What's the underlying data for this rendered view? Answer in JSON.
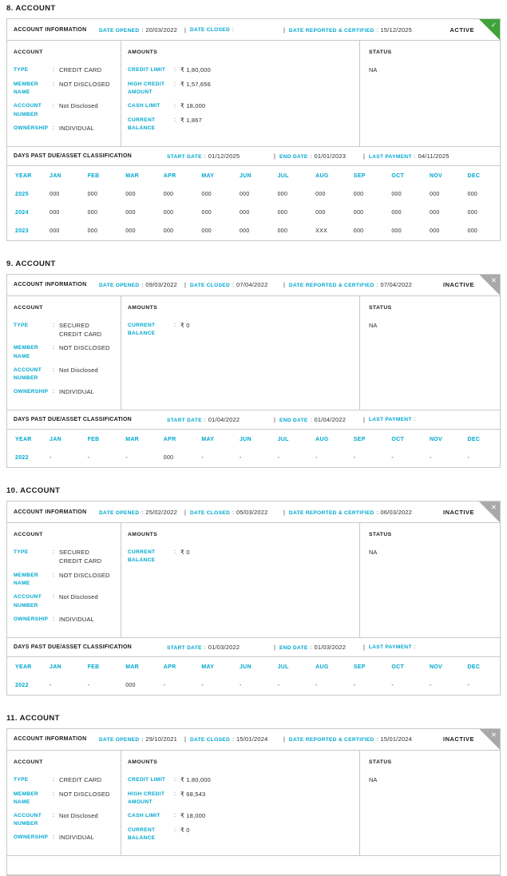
{
  "theme": {
    "accent_cyan": "#00A8CF",
    "active_green": "#3FA33A",
    "inactive_gray": "#A9A9A9",
    "border_gray": "#C9C9C9",
    "text_dark": "#1B1B1B",
    "text_value": "#2D2D2D"
  },
  "labels": {
    "account_information": "ACCOUNT INFORMATION",
    "date_opened": "DATE OPENED",
    "date_closed": "DATE CLOSED",
    "date_reported_certified": "DATE REPORTED & CERTIFIED",
    "account": "ACCOUNT",
    "amounts": "AMOUNTS",
    "status": "STATUS",
    "days_past_due": "DAYS PAST DUE/ASSET CLASSIFICATION",
    "start_date": "START DATE",
    "end_date": "END DATE",
    "last_payment": "LAST PAYMENT",
    "year": "YEAR",
    "months": [
      "JAN",
      "FEB",
      "MAR",
      "APR",
      "MAY",
      "JUN",
      "JUL",
      "AUG",
      "SEP",
      "OCT",
      "NOV",
      "DEC"
    ],
    "colon": ":",
    "pipe": "|"
  },
  "accounts": [
    {
      "title": "8. ACCOUNT",
      "state": "ACTIVE",
      "state_kind": "active",
      "state_icon_glyph": "✓",
      "date_opened": "20/03/2022",
      "date_closed": "",
      "date_reported_certified": "15/12/2025",
      "account_fields": [
        {
          "label": "TYPE",
          "value": "CREDIT CARD"
        },
        {
          "label": "MEMBER NAME",
          "value": "NOT DISCLOSED"
        },
        {
          "label": "ACCOUNT NUMBER",
          "value": "Not Disclosed"
        },
        {
          "label": "OWNERSHIP",
          "value": "INDIVIDUAL"
        }
      ],
      "amount_fields": [
        {
          "label": "CREDIT LIMIT",
          "value": "₹ 1,80,000"
        },
        {
          "label": "HIGH CREDIT AMOUNT",
          "value": "₹ 1,57,656"
        },
        {
          "label": "CASH LIMIT",
          "value": "₹ 18,000"
        },
        {
          "label": "CURRENT BALANCE",
          "value": "₹ 1,867"
        }
      ],
      "status_value": "NA",
      "dpd": {
        "start_date": "01/12/2025",
        "end_date": "01/01/2023",
        "last_payment": "04/11/2025",
        "rows": [
          {
            "year": "2025",
            "values": [
              "000",
              "000",
              "000",
              "000",
              "000",
              "000",
              "000",
              "000",
              "000",
              "000",
              "000",
              "000"
            ]
          },
          {
            "year": "2024",
            "values": [
              "000",
              "000",
              "000",
              "000",
              "000",
              "000",
              "000",
              "000",
              "000",
              "000",
              "000",
              "000"
            ]
          },
          {
            "year": "2023",
            "values": [
              "000",
              "000",
              "000",
              "000",
              "000",
              "000",
              "000",
              "XXX",
              "000",
              "000",
              "000",
              "000"
            ]
          }
        ]
      }
    },
    {
      "title": "9. ACCOUNT",
      "state": "INACTIVE",
      "state_kind": "inactive",
      "state_icon_glyph": "✕",
      "date_opened": "09/03/2022",
      "date_closed": "07/04/2022",
      "date_reported_certified": "07/04/2022",
      "account_fields": [
        {
          "label": "TYPE",
          "value": "SECURED CREDIT CARD"
        },
        {
          "label": "MEMBER NAME",
          "value": "NOT DISCLOSED"
        },
        {
          "label": "ACCOUNT NUMBER",
          "value": "Not Disclosed"
        },
        {
          "label": "OWNERSHIP",
          "value": "INDIVIDUAL"
        }
      ],
      "amount_fields": [
        {
          "label": "CURRENT BALANCE",
          "value": "₹ 0"
        }
      ],
      "status_value": "NA",
      "dpd": {
        "start_date": "01/04/2022",
        "end_date": "01/04/2022",
        "last_payment": "",
        "rows": [
          {
            "year": "2022",
            "values": [
              "-",
              "-",
              "-",
              "000",
              "-",
              "-",
              "-",
              "-",
              "-",
              "-",
              "-",
              "-"
            ]
          }
        ]
      }
    },
    {
      "title": "10. ACCOUNT",
      "state": "INACTIVE",
      "state_kind": "inactive",
      "state_icon_glyph": "✕",
      "date_opened": "25/02/2022",
      "date_closed": "05/03/2022",
      "date_reported_certified": "06/03/2022",
      "account_fields": [
        {
          "label": "TYPE",
          "value": "SECURED CREDIT CARD"
        },
        {
          "label": "MEMBER NAME",
          "value": "NOT DISCLOSED"
        },
        {
          "label": "ACCOUNT NUMBER",
          "value": "Not Disclosed"
        },
        {
          "label": "OWNERSHIP",
          "value": "INDIVIDUAL"
        }
      ],
      "amount_fields": [
        {
          "label": "CURRENT BALANCE",
          "value": "₹ 0"
        }
      ],
      "status_value": "NA",
      "dpd": {
        "start_date": "01/03/2022",
        "end_date": "01/03/2022",
        "last_payment": "",
        "rows": [
          {
            "year": "2022",
            "values": [
              "-",
              "-",
              "000",
              "-",
              "-",
              "-",
              "-",
              "-",
              "-",
              "-",
              "-",
              "-"
            ]
          }
        ]
      }
    },
    {
      "title": "11. ACCOUNT",
      "state": "INACTIVE",
      "state_kind": "inactive",
      "state_icon_glyph": "✕",
      "date_opened": "29/10/2021",
      "date_closed": "15/01/2024",
      "date_reported_certified": "15/01/2024",
      "account_fields": [
        {
          "label": "TYPE",
          "value": "CREDIT CARD"
        },
        {
          "label": "MEMBER NAME",
          "value": "NOT DISCLOSED"
        },
        {
          "label": "ACCOUNT NUMBER",
          "value": "Not Disclosed"
        },
        {
          "label": "OWNERSHIP",
          "value": "INDIVIDUAL"
        }
      ],
      "amount_fields": [
        {
          "label": "CREDIT LIMIT",
          "value": "₹ 1,80,000"
        },
        {
          "label": "HIGH CREDIT AMOUNT",
          "value": "₹ 68,543"
        },
        {
          "label": "CASH LIMIT",
          "value": "₹ 18,000"
        },
        {
          "label": "CURRENT BALANCE",
          "value": "₹ 0"
        }
      ],
      "status_value": "NA",
      "dpd": null
    }
  ]
}
